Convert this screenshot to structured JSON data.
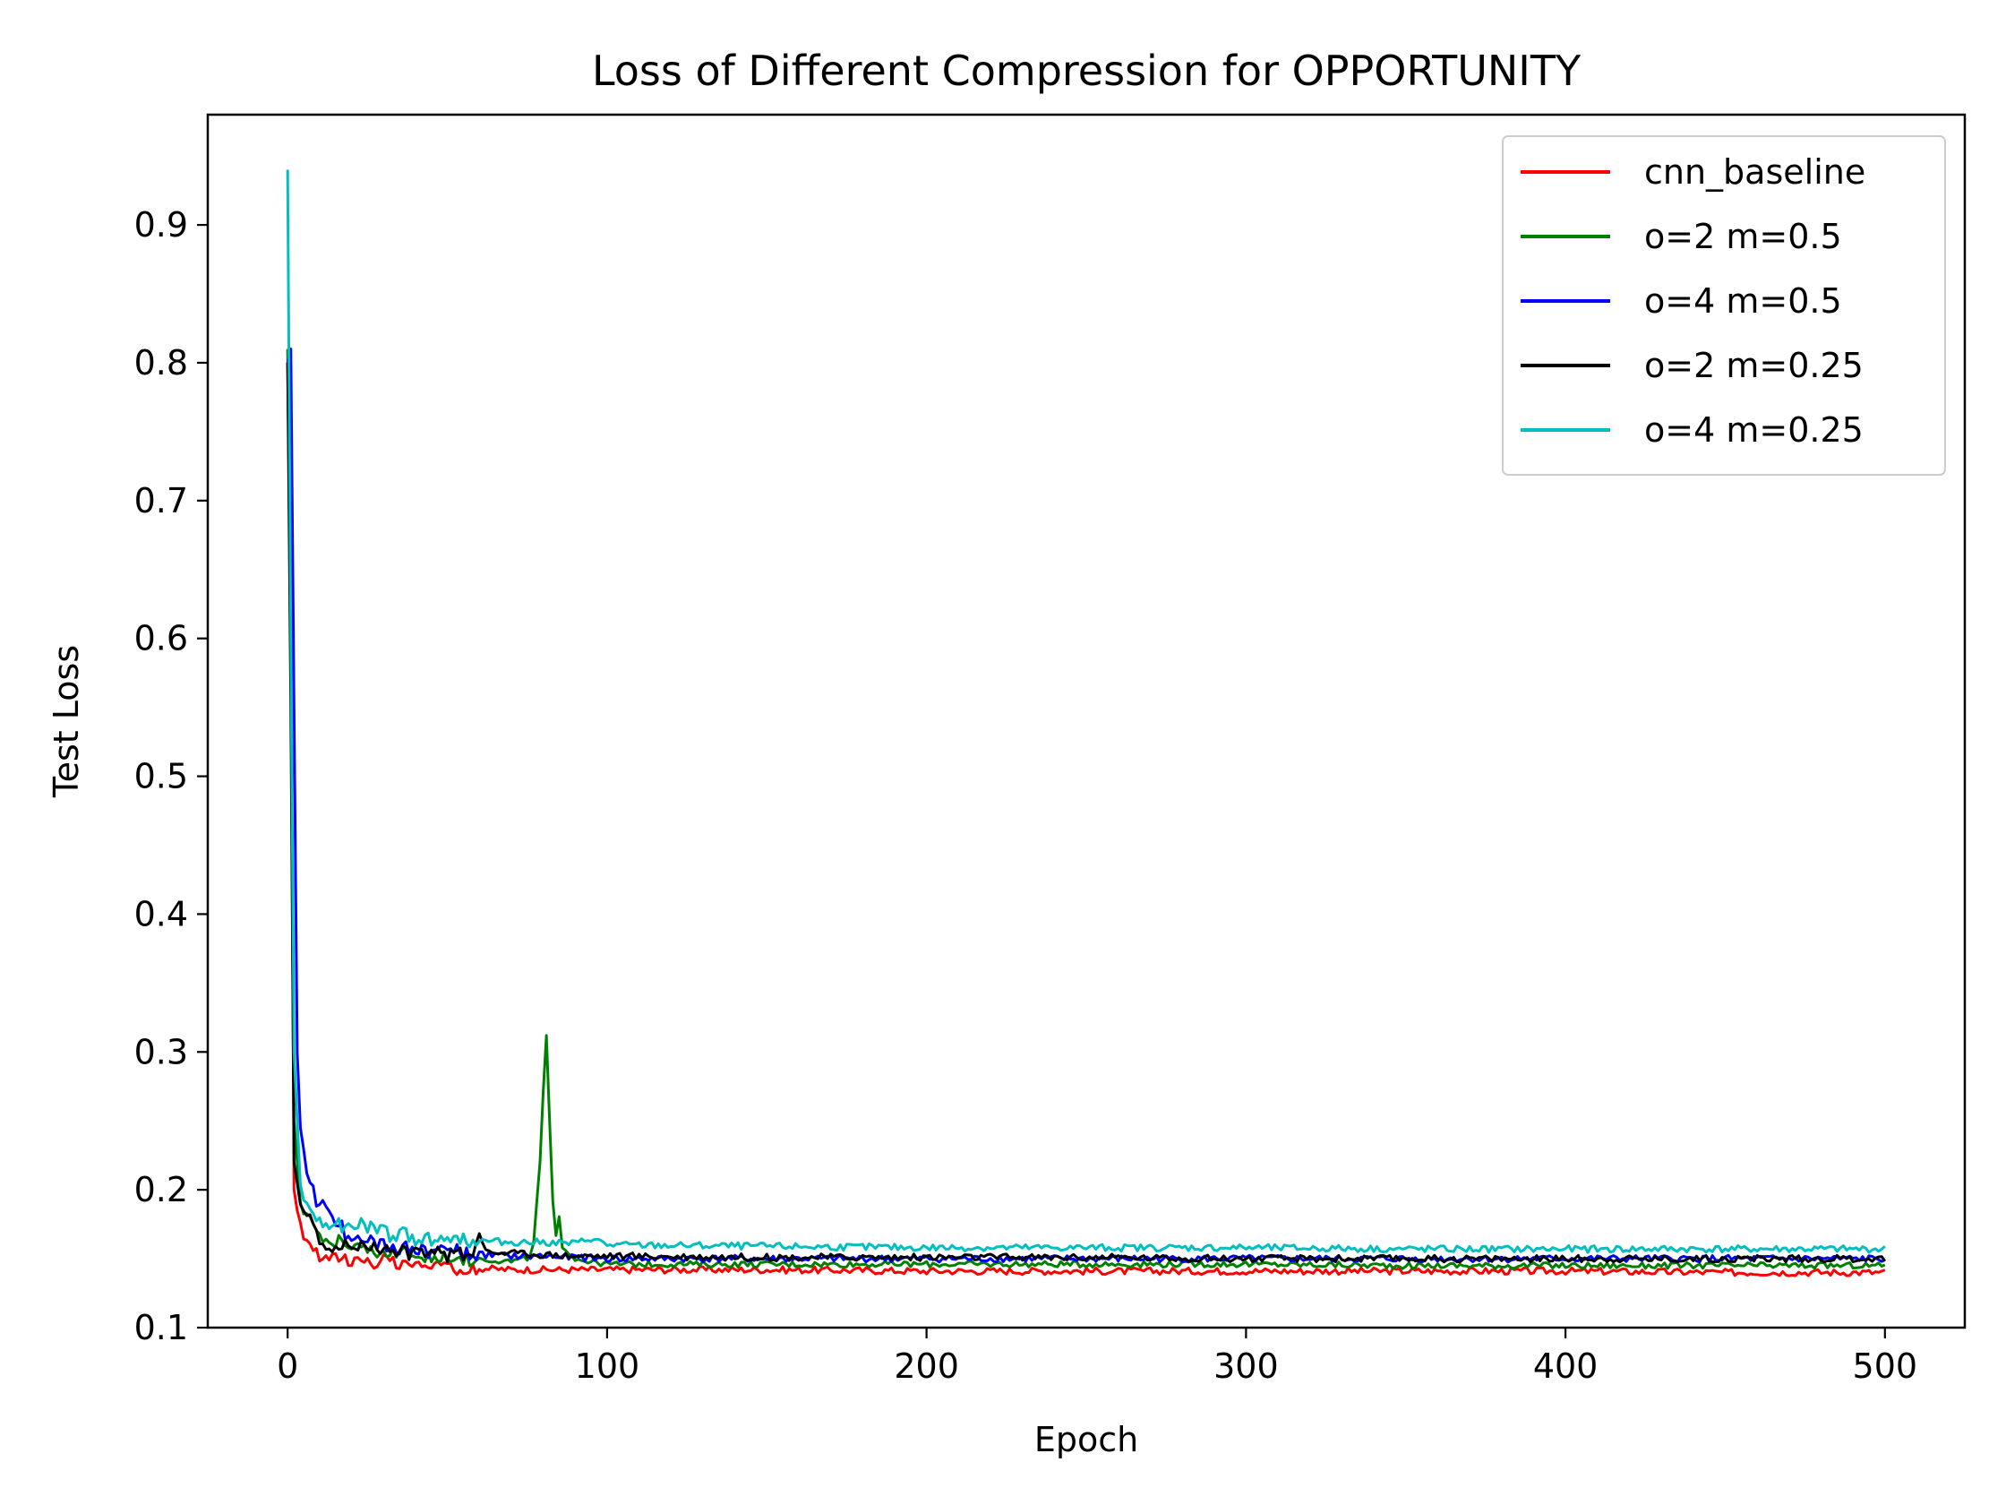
{
  "chart_data": {
    "type": "line",
    "title": "Loss of Different Compression for OPPORTUNITY",
    "xlabel": "Epoch",
    "ylabel": "Test Loss",
    "xlim": [
      -25,
      525
    ],
    "ylim": [
      0.1,
      0.98
    ],
    "xticks": [
      0,
      100,
      200,
      300,
      400,
      500
    ],
    "xtick_labels": [
      "0",
      "100",
      "200",
      "300",
      "400",
      "500"
    ],
    "yticks": [
      0.1,
      0.2,
      0.3,
      0.4,
      0.5,
      0.6,
      0.7,
      0.8,
      0.9
    ],
    "ytick_labels": [
      "0.1",
      "0.2",
      "0.3",
      "0.4",
      "0.5",
      "0.6",
      "0.7",
      "0.8",
      "0.9"
    ],
    "grid": false,
    "legend_position": "top-right",
    "series": [
      {
        "name": "cnn_baseline",
        "color": "#ff0000",
        "points": [
          [
            0,
            0.8
          ],
          [
            1,
            0.6
          ],
          [
            2,
            0.2
          ],
          [
            4,
            0.17
          ],
          [
            6,
            0.165
          ],
          [
            8,
            0.158
          ],
          [
            10,
            0.152
          ],
          [
            15,
            0.152
          ],
          [
            20,
            0.15
          ],
          [
            25,
            0.148
          ],
          [
            30,
            0.147
          ],
          [
            35,
            0.146
          ],
          [
            40,
            0.145
          ],
          [
            50,
            0.144
          ],
          [
            60,
            0.143
          ],
          [
            70,
            0.142
          ],
          [
            80,
            0.142
          ],
          [
            90,
            0.142
          ],
          [
            100,
            0.142
          ],
          [
            150,
            0.142
          ],
          [
            200,
            0.141
          ],
          [
            250,
            0.141
          ],
          [
            300,
            0.141
          ],
          [
            350,
            0.141
          ],
          [
            400,
            0.141
          ],
          [
            450,
            0.14
          ],
          [
            500,
            0.14
          ]
        ],
        "noise": 0.0025
      },
      {
        "name": "o=2 m=0.5",
        "color": "#008000",
        "points": [
          [
            0,
            0.81
          ],
          [
            1,
            0.6
          ],
          [
            2,
            0.25
          ],
          [
            4,
            0.19
          ],
          [
            8,
            0.175
          ],
          [
            12,
            0.165
          ],
          [
            20,
            0.16
          ],
          [
            30,
            0.155
          ],
          [
            40,
            0.152
          ],
          [
            50,
            0.15
          ],
          [
            60,
            0.15
          ],
          [
            70,
            0.148
          ],
          [
            75,
            0.15
          ],
          [
            77,
            0.16
          ],
          [
            78,
            0.19
          ],
          [
            79,
            0.22
          ],
          [
            80,
            0.27
          ],
          [
            81,
            0.31
          ],
          [
            82,
            0.25
          ],
          [
            83,
            0.19
          ],
          [
            84,
            0.165
          ],
          [
            85,
            0.18
          ],
          [
            86,
            0.16
          ],
          [
            90,
            0.15
          ],
          [
            100,
            0.146
          ],
          [
            150,
            0.146
          ],
          [
            200,
            0.146
          ],
          [
            250,
            0.146
          ],
          [
            300,
            0.146
          ],
          [
            350,
            0.145
          ],
          [
            400,
            0.145
          ],
          [
            450,
            0.145
          ],
          [
            500,
            0.145
          ]
        ],
        "noise": 0.0022
      },
      {
        "name": "o=4 m=0.5",
        "color": "#0000ff",
        "points": [
          [
            0,
            0.8
          ],
          [
            1,
            0.81
          ],
          [
            2,
            0.55
          ],
          [
            3,
            0.3
          ],
          [
            4,
            0.24
          ],
          [
            6,
            0.21
          ],
          [
            8,
            0.2
          ],
          [
            10,
            0.19
          ],
          [
            14,
            0.18
          ],
          [
            20,
            0.165
          ],
          [
            30,
            0.158
          ],
          [
            40,
            0.158
          ],
          [
            50,
            0.155
          ],
          [
            60,
            0.153
          ],
          [
            70,
            0.152
          ],
          [
            80,
            0.152
          ],
          [
            90,
            0.151
          ],
          [
            100,
            0.15
          ],
          [
            150,
            0.15
          ],
          [
            200,
            0.15
          ],
          [
            250,
            0.15
          ],
          [
            300,
            0.15
          ],
          [
            350,
            0.15
          ],
          [
            400,
            0.15
          ],
          [
            450,
            0.15
          ],
          [
            500,
            0.15
          ]
        ],
        "noise": 0.0025
      },
      {
        "name": "o=2 m=0.25",
        "color": "#000000",
        "points": [
          [
            0,
            0.8
          ],
          [
            1,
            0.55
          ],
          [
            2,
            0.22
          ],
          [
            4,
            0.19
          ],
          [
            8,
            0.175
          ],
          [
            10,
            0.16
          ],
          [
            15,
            0.16
          ],
          [
            20,
            0.158
          ],
          [
            30,
            0.156
          ],
          [
            40,
            0.155
          ],
          [
            50,
            0.154
          ],
          [
            58,
            0.155
          ],
          [
            60,
            0.17
          ],
          [
            62,
            0.155
          ],
          [
            70,
            0.154
          ],
          [
            80,
            0.153
          ],
          [
            90,
            0.152
          ],
          [
            100,
            0.152
          ],
          [
            150,
            0.151
          ],
          [
            200,
            0.151
          ],
          [
            250,
            0.151
          ],
          [
            300,
            0.15
          ],
          [
            350,
            0.15
          ],
          [
            400,
            0.15
          ],
          [
            450,
            0.15
          ],
          [
            500,
            0.15
          ]
        ],
        "noise": 0.0025
      },
      {
        "name": "o=4 m=0.25",
        "color": "#00bfbf",
        "points": [
          [
            0,
            0.94
          ],
          [
            1,
            0.6
          ],
          [
            2,
            0.3
          ],
          [
            4,
            0.2
          ],
          [
            8,
            0.18
          ],
          [
            12,
            0.175
          ],
          [
            20,
            0.172
          ],
          [
            25,
            0.175
          ],
          [
            30,
            0.168
          ],
          [
            40,
            0.165
          ],
          [
            50,
            0.165
          ],
          [
            60,
            0.163
          ],
          [
            70,
            0.162
          ],
          [
            80,
            0.162
          ],
          [
            90,
            0.161
          ],
          [
            95,
            0.165
          ],
          [
            100,
            0.16
          ],
          [
            150,
            0.159
          ],
          [
            200,
            0.158
          ],
          [
            250,
            0.158
          ],
          [
            300,
            0.158
          ],
          [
            350,
            0.157
          ],
          [
            400,
            0.157
          ],
          [
            450,
            0.157
          ],
          [
            500,
            0.157
          ]
        ],
        "noise": 0.0025
      }
    ]
  }
}
